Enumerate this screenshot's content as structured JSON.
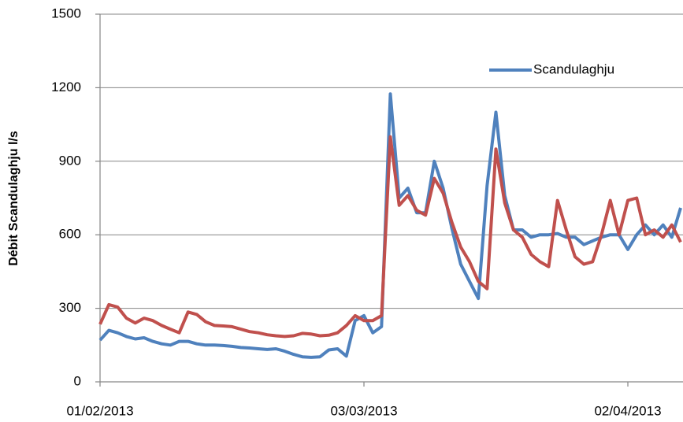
{
  "chart_data": {
    "type": "line",
    "y_label": "Débit  Scandulaghju l/s",
    "x": [
      "01/02/2013",
      "02/02/2013",
      "03/02/2013",
      "04/02/2013",
      "05/02/2013",
      "06/02/2013",
      "07/02/2013",
      "08/02/2013",
      "09/02/2013",
      "10/02/2013",
      "11/02/2013",
      "12/02/2013",
      "13/02/2013",
      "14/02/2013",
      "15/02/2013",
      "16/02/2013",
      "17/02/2013",
      "18/02/2013",
      "19/02/2013",
      "20/02/2013",
      "21/02/2013",
      "22/02/2013",
      "23/02/2013",
      "24/02/2013",
      "25/02/2013",
      "26/02/2013",
      "27/02/2013",
      "28/02/2013",
      "01/03/2013",
      "02/03/2013",
      "03/03/2013",
      "04/03/2013",
      "05/03/2013",
      "06/03/2013",
      "07/03/2013",
      "08/03/2013",
      "09/03/2013",
      "10/03/2013",
      "11/03/2013",
      "12/03/2013",
      "13/03/2013",
      "14/03/2013",
      "15/03/2013",
      "16/03/2013",
      "17/03/2013",
      "18/03/2013",
      "19/03/2013",
      "20/03/2013",
      "21/03/2013",
      "22/03/2013",
      "23/03/2013",
      "24/03/2013",
      "25/03/2013",
      "26/03/2013",
      "27/03/2013",
      "28/03/2013",
      "29/03/2013",
      "30/03/2013",
      "31/03/2013",
      "01/04/2013",
      "02/04/2013",
      "03/04/2013",
      "04/04/2013",
      "05/04/2013",
      "06/04/2013",
      "07/04/2013",
      "08/04/2013"
    ],
    "series": [
      {
        "name": "Scandulaghju",
        "color": "#4f81bd",
        "values": [
          170,
          210,
          200,
          185,
          175,
          180,
          165,
          155,
          150,
          165,
          165,
          155,
          150,
          150,
          148,
          145,
          140,
          138,
          135,
          132,
          135,
          125,
          112,
          102,
          100,
          102,
          130,
          135,
          105,
          250,
          270,
          200,
          225,
          1175,
          750,
          790,
          690,
          690,
          900,
          790,
          625,
          480,
          410,
          340,
          800,
          1100,
          760,
          620,
          620,
          590,
          600,
          600,
          605,
          590,
          590,
          560,
          575,
          590,
          600,
          600,
          540,
          600,
          640,
          600,
          640,
          590,
          710
        ]
      },
      {
        "color": "#c0504d",
        "values": [
          235,
          315,
          305,
          260,
          240,
          260,
          250,
          230,
          215,
          200,
          285,
          275,
          245,
          230,
          228,
          225,
          215,
          205,
          200,
          192,
          188,
          185,
          188,
          198,
          195,
          188,
          190,
          200,
          230,
          270,
          250,
          250,
          270,
          1000,
          720,
          760,
          700,
          680,
          830,
          770,
          650,
          550,
          490,
          410,
          380,
          950,
          730,
          620,
          590,
          520,
          490,
          470,
          740,
          620,
          510,
          480,
          490,
          600,
          740,
          600,
          740,
          750,
          600,
          620,
          590,
          640,
          570
        ]
      }
    ],
    "xlim": [
      "01/02/2013",
      "08/04/2013"
    ],
    "xticks": [
      "01/02/2013",
      "03/03/2013",
      "02/04/2013"
    ],
    "ylim": [
      0,
      1500
    ],
    "yticks": [
      0,
      300,
      600,
      900,
      1200,
      1500
    ],
    "grid": true,
    "legend": "upper-right"
  }
}
